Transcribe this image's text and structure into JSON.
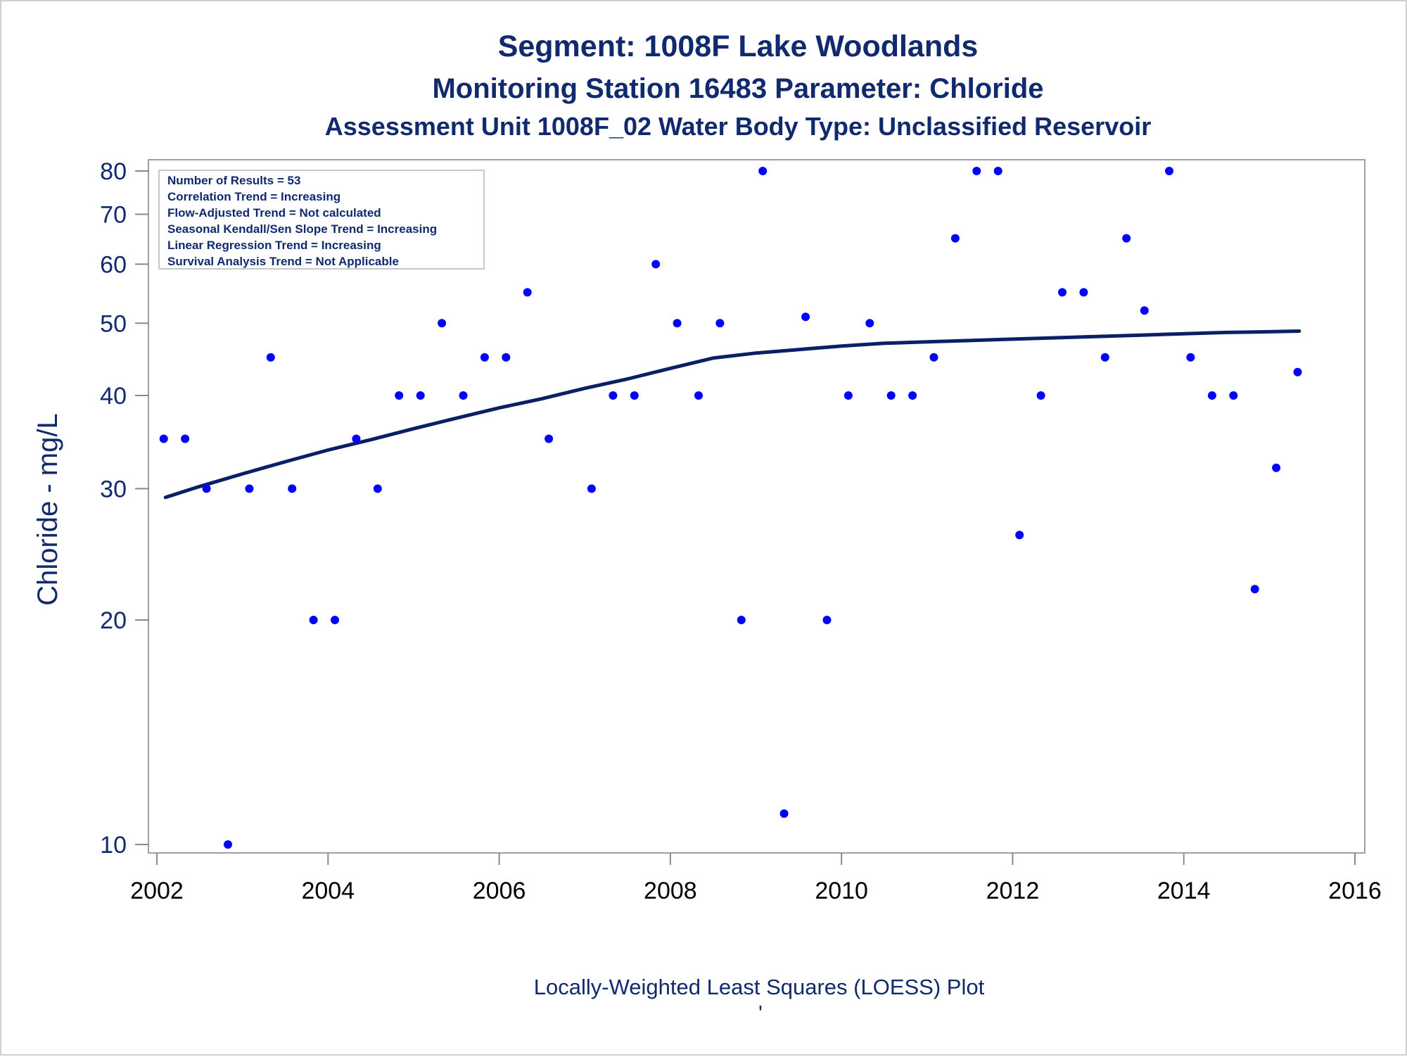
{
  "titles": {
    "line1": "Segment: 1008F  Lake Woodlands",
    "line2": "Monitoring Station 16483 Parameter: Chloride",
    "line3": "Assessment Unit 1008F_02   Water Body Type: Unclassified Reservoir"
  },
  "footnote": "Locally-Weighted Least Squares (LOESS) Plot",
  "footnote_mark": "'",
  "stats": [
    "Number of Results = 53",
    "Correlation Trend = Increasing",
    "Flow-Adjusted Trend = Not calculated",
    "Seasonal Kendall/Sen Slope Trend = Increasing",
    "Linear Regression Trend = Increasing",
    "Survival Analysis Trend = Not Applicable"
  ],
  "colors": {
    "text": "#112a6e",
    "points": "#0000ff",
    "trend": "#0b1f66",
    "axis_tick_y": "#112a6e",
    "axis_tick_x": "#000000",
    "frame": "#a0a0a0"
  },
  "chart_data": {
    "type": "scatter",
    "ylabel": "Chloride - mg/L",
    "xlabel": "",
    "y_scale": "log",
    "xlim": [
      2002,
      2016
    ],
    "ylim": [
      10,
      80
    ],
    "x_ticks": [
      2002,
      2004,
      2006,
      2008,
      2010,
      2012,
      2014,
      2016
    ],
    "y_ticks": [
      10,
      20,
      30,
      40,
      50,
      60,
      70,
      80
    ],
    "legend": "stats box top-left",
    "grid": false,
    "series": [
      {
        "kind": "scatter",
        "x": [
          2002.08,
          2002.33,
          2002.58,
          2002.83,
          2003.08,
          2003.33,
          2003.58,
          2003.83,
          2004.08,
          2004.33,
          2004.58,
          2004.83,
          2005.08,
          2005.33,
          2005.58,
          2005.83,
          2006.08,
          2006.33,
          2006.58,
          2007.08,
          2007.33,
          2007.58,
          2007.83,
          2008.08,
          2008.33,
          2008.58,
          2008.83,
          2009.08,
          2009.33,
          2009.58,
          2009.83,
          2010.08,
          2010.33,
          2010.58,
          2010.83,
          2011.08,
          2011.33,
          2011.58,
          2011.83,
          2012.08,
          2012.33,
          2012.58,
          2012.83,
          2013.08,
          2013.33,
          2013.54,
          2013.83,
          2014.08,
          2014.33,
          2014.58,
          2014.83,
          2015.08,
          2015.33
        ],
        "y": [
          35,
          35,
          30,
          10,
          30,
          45,
          30,
          20,
          20,
          35,
          30,
          40,
          40,
          50,
          40,
          45,
          45,
          55,
          35,
          30,
          40,
          40,
          60,
          50,
          40,
          50,
          20,
          80,
          11,
          51,
          20,
          40,
          50,
          40,
          40,
          45,
          65,
          80,
          80,
          26,
          40,
          55,
          55,
          45,
          65,
          52,
          80,
          45,
          40,
          40,
          22,
          32,
          43
        ]
      },
      {
        "kind": "line",
        "x": [
          2002.1,
          2002.5,
          2003.0,
          2003.5,
          2004.0,
          2004.5,
          2005.0,
          2005.5,
          2006.0,
          2006.5,
          2007.0,
          2007.5,
          2008.0,
          2008.5,
          2009.0,
          2009.5,
          2010.0,
          2010.5,
          2011.0,
          2011.5,
          2012.0,
          2012.5,
          2013.0,
          2013.5,
          2014.0,
          2014.5,
          2015.0,
          2015.35
        ],
        "y": [
          29.2,
          30.2,
          31.4,
          32.6,
          33.8,
          34.9,
          36.1,
          37.3,
          38.5,
          39.6,
          40.9,
          42.1,
          43.5,
          44.9,
          45.6,
          46.1,
          46.6,
          47.0,
          47.2,
          47.4,
          47.6,
          47.8,
          48.0,
          48.2,
          48.4,
          48.6,
          48.7,
          48.8
        ]
      }
    ]
  }
}
